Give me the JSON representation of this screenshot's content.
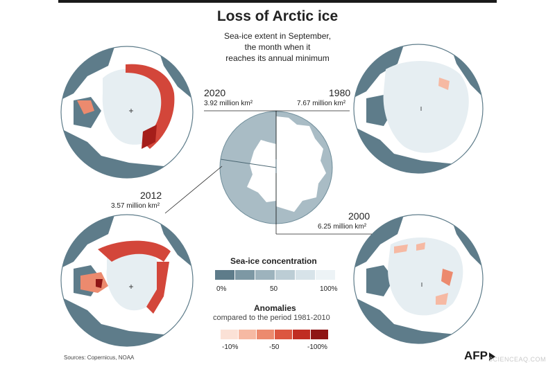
{
  "header": {
    "title": "Loss of Arctic ice",
    "subtitle_lines": [
      "Sea-ice extent in September,",
      "the month when it",
      "reaches its annual minimum"
    ]
  },
  "chart_data": [
    {
      "type": "map",
      "maps": [
        {
          "year": "2020",
          "extent_label": "3.92 million km²",
          "extent_million_km2": 3.92,
          "layer": "anomaly"
        },
        {
          "year": "1980",
          "extent_label": "7.67 million km²",
          "extent_million_km2": 7.67,
          "layer": "concentration"
        },
        {
          "year": "2012",
          "extent_label": "3.57 million km²",
          "extent_million_km2": 3.57,
          "layer": "anomaly"
        },
        {
          "year": "2000",
          "extent_label": "6.25 million km²",
          "extent_million_km2": 6.25,
          "layer": "anomaly"
        }
      ]
    },
    {
      "type": "legend",
      "concentration": {
        "title": "Sea-ice concentration",
        "ticks": [
          "0%",
          "50",
          "100%"
        ],
        "colors": [
          "#5e7c8a",
          "#7d98a4",
          "#9db3bd",
          "#bccdd5",
          "#d7e3e9",
          "#edf3f6"
        ]
      },
      "anomalies": {
        "title": "Anomalies",
        "subtitle": "compared to the period 1981-2010",
        "ticks": [
          "-10%",
          "-50",
          "-100%"
        ],
        "colors": [
          "#fbe1d6",
          "#f6b9a3",
          "#ec8a6e",
          "#dc5640",
          "#c02d22",
          "#8f1515"
        ]
      }
    }
  ],
  "footer": {
    "source": "Sources: Copernicus, NOAA",
    "brand": "AFP",
    "watermark": "SCIENCEAQ.COM"
  },
  "colors": {
    "ocean": "#ffffff",
    "land": "#5e7c8a",
    "ice": "#e6eef2",
    "anomaly_dark": "#c02d22",
    "inset_disc": "#a9bcc5"
  }
}
